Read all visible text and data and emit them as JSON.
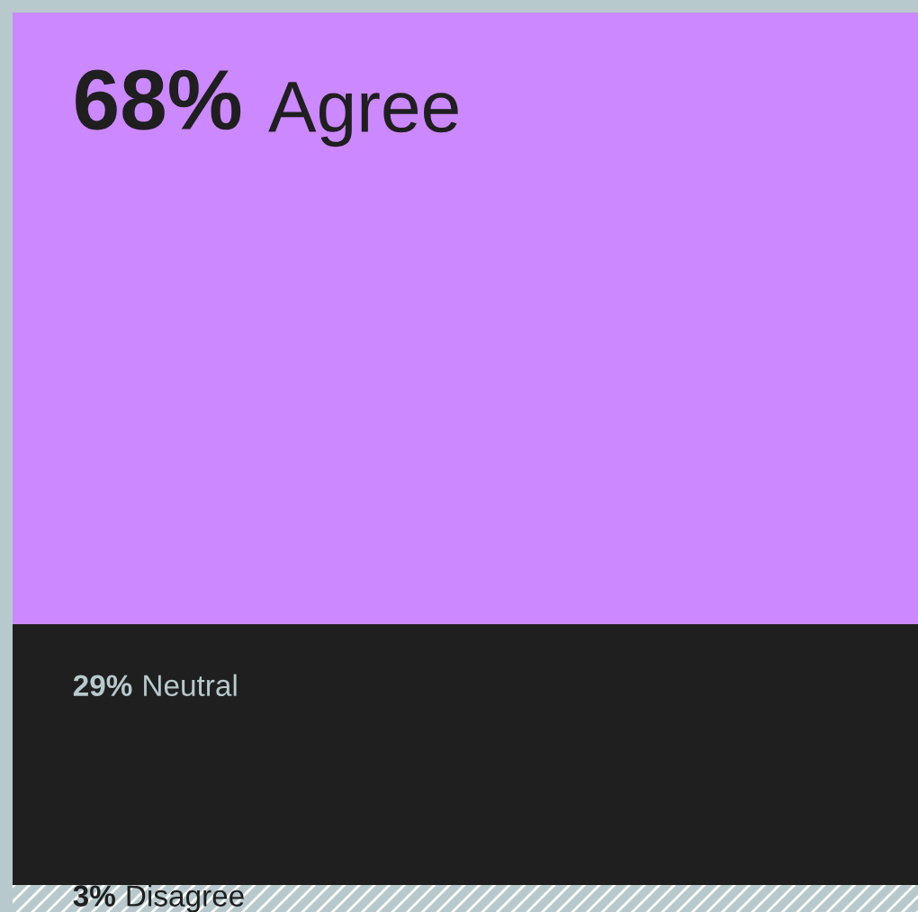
{
  "chart_data": {
    "type": "bar",
    "stacked": true,
    "categories": [
      null
    ],
    "series": [
      {
        "name": "Disagree",
        "color": "#b7c9cc",
        "values": [
          3
        ],
        "value_labels": [
          "3%"
        ]
      },
      {
        "name": "Neutral",
        "color": "#1f1f1f",
        "values": [
          29
        ],
        "value_labels": [
          "29%"
        ]
      },
      {
        "name": "Agree",
        "color": "#cc88ff",
        "values": [
          68
        ],
        "value_labels": [
          "68%"
        ]
      }
    ],
    "legend": false
  }
}
